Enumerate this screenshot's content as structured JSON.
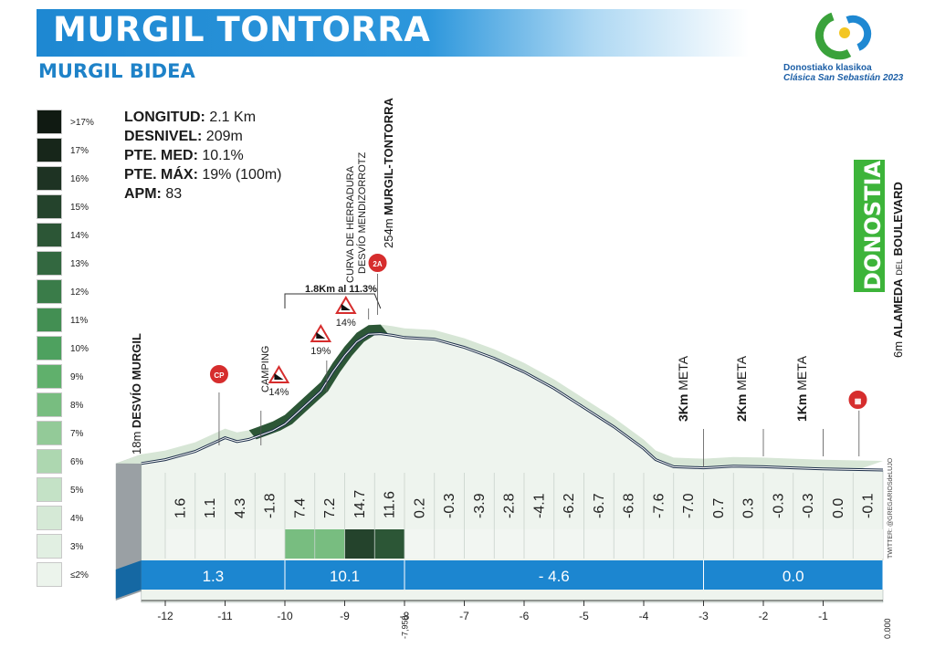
{
  "header": {
    "title": "MURGIL TONTORRA",
    "subtitle": "MURGIL BIDEA",
    "title_bar_color": "#1e88d2"
  },
  "logo": {
    "line1": "Donostiako klasikoa",
    "line2": "Clásica San Sebastián 2023"
  },
  "stats": [
    {
      "label": "LONGITUD:",
      "value": "2.1 Km"
    },
    {
      "label": "DESNIVEL:",
      "value": "209m"
    },
    {
      "label": "PTE. MED:",
      "value": "10.1%"
    },
    {
      "label": "PTE. MÁX:",
      "value": "19% (100m)"
    },
    {
      "label": "APM:",
      "value": "83"
    }
  ],
  "legend": [
    {
      "label": ">17%",
      "color": "#101a12"
    },
    {
      "label": "17%",
      "color": "#17261a"
    },
    {
      "label": "16%",
      "color": "#1e3323"
    },
    {
      "label": "15%",
      "color": "#24432c"
    },
    {
      "label": "14%",
      "color": "#2c5636"
    },
    {
      "label": "13%",
      "color": "#336840"
    },
    {
      "label": "12%",
      "color": "#3a7c49"
    },
    {
      "label": "11%",
      "color": "#438f53"
    },
    {
      "label": "10%",
      "color": "#4ea15f"
    },
    {
      "label": "9%",
      "color": "#60b06c"
    },
    {
      "label": "8%",
      "color": "#78bd80"
    },
    {
      "label": "7%",
      "color": "#93ca98"
    },
    {
      "label": "6%",
      "color": "#add7b0"
    },
    {
      "label": "5%",
      "color": "#c4e2c6"
    },
    {
      "label": "4%",
      "color": "#d5e9d6"
    },
    {
      "label": "3%",
      "color": "#e1efe2"
    },
    {
      "label": "≤2%",
      "color": "#ecf4ec"
    }
  ],
  "annotations": {
    "start_label_alt": "18m",
    "start_label_name": "DESVÍO MURGIL",
    "camping": "CAMPING",
    "curva1": "CURVA DE HERRADURA",
    "curva2": "DESVÍO MENDIZORROTZ",
    "summit_alt": "254m",
    "summit_name": "MURGIL-TONTORRA",
    "bracket": "1.8Km al 11.3%",
    "finish_alt": "6m",
    "finish_name1": "ALAMEDA",
    "finish_name2": "DEL",
    "finish_name3": "BOULEVARD",
    "finish_city": "DONOSTIA",
    "meta3": "3Km",
    "meta2": "2Km",
    "meta1": "1Km",
    "meta_word": "META",
    "cp_icon_text": "CP",
    "summit_icon_text": "2A",
    "credit": "TWITTER: @GREGARIOSdeLUJO",
    "steep_colors": {
      "14": "#2c5636",
      "19": "#101a12",
      "14b": "#2c5636"
    }
  },
  "chart_data": {
    "type": "area",
    "title": "MURGIL TONTORRA",
    "xlabel": "",
    "ylabel": "",
    "x_ticks": [
      "-12",
      "-11",
      "-10",
      "-9",
      "-8",
      "-7",
      "-6",
      "-5",
      "-4",
      "-3",
      "-2",
      "-1"
    ],
    "x_extra_labels": [
      "-7,950",
      "0.000"
    ],
    "xlim": [
      -12.4,
      0
    ],
    "profile": {
      "x": [
        -12.4,
        -12.0,
        -11.5,
        -11.2,
        -11.0,
        -10.8,
        -10.6,
        -10.4,
        -10.2,
        -10.0,
        -9.7,
        -9.4,
        -9.2,
        -9.0,
        -8.8,
        -8.6,
        -8.4,
        -8.2,
        -8.0,
        -7.5,
        -7.0,
        -6.5,
        -6.0,
        -5.5,
        -5.0,
        -4.5,
        -4.0,
        -3.8,
        -3.5,
        -3.0,
        -2.5,
        -2.0,
        -1.5,
        -1.0,
        -0.5,
        0.0
      ],
      "elevation": [
        18,
        25,
        40,
        55,
        65,
        58,
        62,
        70,
        78,
        90,
        120,
        150,
        185,
        215,
        240,
        254,
        255,
        252,
        248,
        245,
        230,
        210,
        185,
        155,
        120,
        85,
        45,
        25,
        12,
        10,
        13,
        12,
        10,
        8,
        7,
        6
      ]
    },
    "km_segments": {
      "labels": [
        "1.6",
        "1.1",
        "4.3",
        "-1.8",
        "7.4",
        "7.2",
        "14.7",
        "11.6",
        "0.2",
        "-0.3",
        "-3.9",
        "-2.8",
        "-4.1",
        "-6.2",
        "-6.7",
        "-6.8",
        "-7.6",
        "-7.0",
        "0.7",
        "0.3",
        "-0.3",
        "-0.3",
        "0.0",
        "-0.1"
      ],
      "gradients": [
        1.6,
        1.1,
        4.3,
        -1.8,
        7.4,
        7.2,
        14.7,
        11.6,
        0.2,
        -0.3,
        -3.9,
        -2.8,
        -4.1,
        -6.2,
        -6.7,
        -6.8,
        -7.6,
        -7.0,
        0.7,
        0.3,
        -0.3,
        -0.3,
        0.0,
        -0.1
      ]
    },
    "sections": [
      {
        "from": -12.4,
        "to": -10,
        "label": "1.3"
      },
      {
        "from": -10,
        "to": -8,
        "label": "10.1"
      },
      {
        "from": -8,
        "to": -3,
        "label": "- 4.6"
      },
      {
        "from": -3,
        "to": 0,
        "label": "0.0"
      }
    ],
    "markers": [
      {
        "x": -11,
        "label": "CP"
      },
      {
        "x": -10.5,
        "label": "14%"
      },
      {
        "x": -9.4,
        "label": "19%"
      },
      {
        "x": -8.8,
        "label": "14%"
      },
      {
        "x": -8.4,
        "label": "2A"
      },
      {
        "x": -3,
        "label": "3Km META"
      },
      {
        "x": -2,
        "label": "2Km META"
      },
      {
        "x": -1,
        "label": "1Km META"
      },
      {
        "x": -0.4,
        "label": "finish"
      }
    ]
  }
}
